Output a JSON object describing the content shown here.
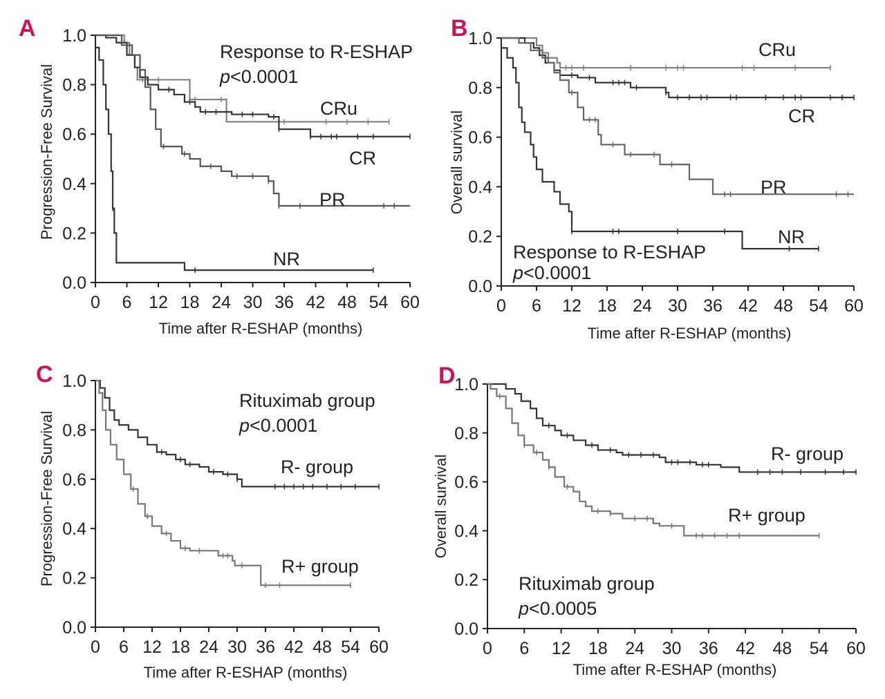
{
  "chart_data": [
    {
      "type": "line",
      "panel_label": "A",
      "title": "Response to R-ESHAP",
      "pvalue_prefix": "p",
      "pvalue_rest": "<0.0001",
      "xlabel": "Time after R-ESHAP (months)",
      "ylabel": "Progression-Free Survival",
      "xlim": [
        0,
        60
      ],
      "ylim": [
        0,
        1
      ],
      "xticks": [
        "0",
        "6",
        "12",
        "18",
        "24",
        "30",
        "36",
        "42",
        "48",
        "54",
        "60"
      ],
      "yticks": [
        "0.0",
        "0.2",
        "0.4",
        "0.6",
        "0.8",
        "1.0"
      ],
      "series": [
        {
          "name": "CRu",
          "color": "#808080",
          "steps": [
            [
              0,
              1
            ],
            [
              5.5,
              0.97
            ],
            [
              6.5,
              0.92
            ],
            [
              7.5,
              0.87
            ],
            [
              8,
              0.82
            ],
            [
              18,
              0.74
            ],
            [
              25,
              0.65
            ],
            [
              56,
              0.65
            ]
          ],
          "censored": [
            9,
            12,
            19,
            24,
            36,
            44,
            48,
            52,
            56
          ]
        },
        {
          "name": "CR",
          "color": "#333333",
          "steps": [
            [
              0,
              1
            ],
            [
              2,
              0.99
            ],
            [
              4,
              0.97
            ],
            [
              6,
              0.92
            ],
            [
              7.5,
              0.87
            ],
            [
              8.5,
              0.83
            ],
            [
              10,
              0.8
            ],
            [
              12,
              0.78
            ],
            [
              15,
              0.76
            ],
            [
              17,
              0.73
            ],
            [
              19,
              0.71
            ],
            [
              20,
              0.69
            ],
            [
              23,
              0.69
            ],
            [
              26,
              0.68
            ],
            [
              30,
              0.68
            ],
            [
              33,
              0.67
            ],
            [
              35,
              0.62
            ],
            [
              36,
              0.62
            ],
            [
              41,
              0.59
            ],
            [
              60,
              0.59
            ]
          ],
          "censored": [
            14,
            18,
            21,
            23,
            28,
            30,
            34,
            35,
            41,
            43,
            45,
            46,
            50,
            53,
            60
          ]
        },
        {
          "name": "PR",
          "color": "#555555",
          "steps": [
            [
              0,
              1
            ],
            [
              5,
              0.96
            ],
            [
              7,
              0.92
            ],
            [
              8.5,
              0.86
            ],
            [
              9.5,
              0.79
            ],
            [
              10.5,
              0.7
            ],
            [
              11.5,
              0.62
            ],
            [
              12.5,
              0.55
            ],
            [
              16.5,
              0.52
            ],
            [
              18,
              0.5
            ],
            [
              20,
              0.47
            ],
            [
              24,
              0.45
            ],
            [
              26,
              0.43
            ],
            [
              33,
              0.41
            ],
            [
              34,
              0.36
            ],
            [
              35,
              0.31
            ],
            [
              60,
              0.31
            ]
          ],
          "censored": [
            13,
            17,
            22,
            27,
            30,
            33,
            35,
            39,
            55,
            57
          ]
        },
        {
          "name": "NR",
          "color": "#333333",
          "steps": [
            [
              0,
              0.95
            ],
            [
              0.7,
              0.9
            ],
            [
              1.5,
              0.8
            ],
            [
              2,
              0.7
            ],
            [
              2.5,
              0.6
            ],
            [
              3,
              0.45
            ],
            [
              3.3,
              0.3
            ],
            [
              3.6,
              0.2
            ],
            [
              4,
              0.08
            ],
            [
              17,
              0.05
            ],
            [
              53,
              0.05
            ]
          ],
          "censored": [
            3.3,
            19,
            53
          ]
        }
      ]
    },
    {
      "type": "line",
      "panel_label": "B",
      "title": "Response to R-ESHAP",
      "pvalue_prefix": "p",
      "pvalue_rest": "<0.0001",
      "xlabel": "Time after R-ESHAP (months)",
      "ylabel": "Overall survival",
      "xlim": [
        0,
        60
      ],
      "ylim": [
        0,
        1
      ],
      "xticks": [
        "0",
        "6",
        "12",
        "18",
        "24",
        "30",
        "36",
        "42",
        "48",
        "54",
        "60"
      ],
      "yticks": [
        "0.0",
        "0.2",
        "0.4",
        "0.6",
        "0.8",
        "1.0"
      ],
      "series": [
        {
          "name": "CRu",
          "color": "#808080",
          "steps": [
            [
              0,
              1
            ],
            [
              6,
              0.97
            ],
            [
              7,
              0.94
            ],
            [
              8,
              0.92
            ],
            [
              9.5,
              0.9
            ],
            [
              10,
              0.88
            ],
            [
              56,
              0.88
            ]
          ],
          "censored": [
            11,
            12,
            14,
            22,
            28,
            30,
            31,
            41,
            43,
            50,
            56
          ]
        },
        {
          "name": "CR",
          "color": "#333333",
          "steps": [
            [
              0,
              1
            ],
            [
              4,
              0.98
            ],
            [
              5.5,
              0.96
            ],
            [
              6.5,
              0.93
            ],
            [
              7.5,
              0.9
            ],
            [
              9,
              0.87
            ],
            [
              10,
              0.85
            ],
            [
              13,
              0.84
            ],
            [
              16,
              0.82
            ],
            [
              22,
              0.8
            ],
            [
              28,
              0.78
            ],
            [
              28.5,
              0.76
            ],
            [
              60,
              0.76
            ]
          ],
          "censored": [
            12,
            15,
            19,
            20,
            21,
            23,
            28,
            30,
            32,
            34,
            35,
            39,
            40,
            45,
            48,
            50,
            51,
            56,
            58,
            60
          ]
        },
        {
          "name": "PR",
          "color": "#666666",
          "steps": [
            [
              0,
              1
            ],
            [
              3,
              0.98
            ],
            [
              5,
              0.95
            ],
            [
              7,
              0.92
            ],
            [
              8,
              0.9
            ],
            [
              9,
              0.86
            ],
            [
              10,
              0.83
            ],
            [
              11.5,
              0.78
            ],
            [
              13,
              0.72
            ],
            [
              14,
              0.67
            ],
            [
              16.5,
              0.61
            ],
            [
              17,
              0.57
            ],
            [
              21,
              0.53
            ],
            [
              27,
              0.49
            ],
            [
              32,
              0.43
            ],
            [
              36,
              0.37
            ],
            [
              60,
              0.37
            ]
          ],
          "censored": [
            12,
            15,
            16,
            19,
            22,
            26,
            29,
            38,
            39,
            57,
            59
          ]
        },
        {
          "name": "NR",
          "color": "#333333",
          "steps": [
            [
              0,
              0.96
            ],
            [
              1,
              0.92
            ],
            [
              2,
              0.88
            ],
            [
              2.5,
              0.82
            ],
            [
              3,
              0.72
            ],
            [
              3.5,
              0.66
            ],
            [
              4,
              0.62
            ],
            [
              5,
              0.57
            ],
            [
              5.5,
              0.52
            ],
            [
              6,
              0.47
            ],
            [
              7,
              0.42
            ],
            [
              9,
              0.38
            ],
            [
              10,
              0.33
            ],
            [
              11.5,
              0.3
            ],
            [
              12,
              0.22
            ],
            [
              40,
              0.22
            ],
            [
              41,
              0.15
            ],
            [
              54,
              0.15
            ]
          ],
          "censored": [
            12,
            19,
            20,
            30,
            38,
            49,
            54
          ]
        }
      ]
    },
    {
      "type": "line",
      "panel_label": "C",
      "title": "Rituximab group",
      "pvalue_prefix": "p",
      "pvalue_rest": "<0.0001",
      "xlabel": "Time after R-ESHAP (months)",
      "ylabel": "Progression-Free Survival",
      "xlim": [
        0,
        60
      ],
      "ylim": [
        0,
        1
      ],
      "xticks": [
        "0",
        "6",
        "12",
        "18",
        "24",
        "30",
        "36",
        "42",
        "48",
        "54",
        "60"
      ],
      "yticks": [
        "0.0",
        "0.2",
        "0.4",
        "0.6",
        "0.8",
        "1.0"
      ],
      "series": [
        {
          "name": "R- group",
          "color": "#333333",
          "steps": [
            [
              0,
              1
            ],
            [
              1,
              0.97
            ],
            [
              2,
              0.93
            ],
            [
              3,
              0.88
            ],
            [
              4,
              0.84
            ],
            [
              5,
              0.82
            ],
            [
              7,
              0.8
            ],
            [
              9,
              0.77
            ],
            [
              11,
              0.74
            ],
            [
              13,
              0.71
            ],
            [
              15,
              0.7
            ],
            [
              17,
              0.68
            ],
            [
              19,
              0.66
            ],
            [
              22,
              0.65
            ],
            [
              24,
              0.63
            ],
            [
              27,
              0.62
            ],
            [
              30,
              0.6
            ],
            [
              31,
              0.57
            ],
            [
              60,
              0.57
            ]
          ],
          "censored": [
            14,
            18,
            20,
            25,
            28,
            30,
            38,
            40,
            42,
            44,
            46,
            49,
            52,
            55,
            60
          ]
        },
        {
          "name": "R+ group",
          "color": "#777777",
          "steps": [
            [
              0,
              1
            ],
            [
              0.8,
              0.95
            ],
            [
              1.5,
              0.88
            ],
            [
              2.2,
              0.8
            ],
            [
              3.2,
              0.74
            ],
            [
              4.5,
              0.68
            ],
            [
              6,
              0.62
            ],
            [
              7.5,
              0.56
            ],
            [
              9,
              0.5
            ],
            [
              10.5,
              0.45
            ],
            [
              12,
              0.41
            ],
            [
              14,
              0.38
            ],
            [
              16,
              0.35
            ],
            [
              18,
              0.32
            ],
            [
              20,
              0.31
            ],
            [
              26,
              0.29
            ],
            [
              29,
              0.27
            ],
            [
              29.5,
              0.25
            ],
            [
              35,
              0.17
            ],
            [
              54,
              0.17
            ]
          ],
          "censored": [
            8,
            11,
            15,
            19,
            22,
            27,
            28,
            31,
            36,
            39,
            54
          ]
        }
      ]
    },
    {
      "type": "line",
      "panel_label": "D",
      "title": "Rituximab group",
      "pvalue_prefix": "p",
      "pvalue_rest": "<0.0005",
      "xlabel": "Time after R-ESHAP (months)",
      "ylabel": "Overall survival",
      "xlim": [
        0,
        60
      ],
      "ylim": [
        0,
        1
      ],
      "xticks": [
        "0",
        "6",
        "12",
        "18",
        "24",
        "30",
        "36",
        "42",
        "48",
        "54",
        "60"
      ],
      "yticks": [
        "0.0",
        "0.2",
        "0.4",
        "0.6",
        "0.8",
        "1.0"
      ],
      "series": [
        {
          "name": "R- group",
          "color": "#333333",
          "steps": [
            [
              0,
              1
            ],
            [
              3,
              0.98
            ],
            [
              4.5,
              0.96
            ],
            [
              5.5,
              0.93
            ],
            [
              7,
              0.9
            ],
            [
              8,
              0.86
            ],
            [
              9,
              0.83
            ],
            [
              11,
              0.81
            ],
            [
              12,
              0.79
            ],
            [
              14,
              0.77
            ],
            [
              16,
              0.75
            ],
            [
              18,
              0.73
            ],
            [
              21,
              0.72
            ],
            [
              22,
              0.71
            ],
            [
              28,
              0.7
            ],
            [
              29,
              0.68
            ],
            [
              34,
              0.67
            ],
            [
              38,
              0.66
            ],
            [
              41,
              0.64
            ],
            [
              60,
              0.64
            ]
          ],
          "censored": [
            10,
            13,
            17,
            20,
            23,
            25,
            27,
            30,
            31,
            33,
            35,
            36,
            44,
            46,
            48,
            51,
            55,
            58,
            60
          ]
        },
        {
          "name": "R+ group",
          "color": "#777777",
          "steps": [
            [
              0,
              1
            ],
            [
              0.5,
              0.98
            ],
            [
              1.5,
              0.95
            ],
            [
              3,
              0.9
            ],
            [
              4,
              0.84
            ],
            [
              5,
              0.79
            ],
            [
              6,
              0.75
            ],
            [
              7.5,
              0.72
            ],
            [
              9,
              0.69
            ],
            [
              10,
              0.66
            ],
            [
              11,
              0.62
            ],
            [
              12.5,
              0.58
            ],
            [
              14,
              0.56
            ],
            [
              15,
              0.52
            ],
            [
              16,
              0.5
            ],
            [
              17,
              0.48
            ],
            [
              20,
              0.47
            ],
            [
              22,
              0.45
            ],
            [
              27,
              0.43
            ],
            [
              28,
              0.42
            ],
            [
              32,
              0.38
            ],
            [
              54,
              0.38
            ]
          ],
          "censored": [
            2,
            6,
            8,
            10,
            13,
            18,
            20,
            24,
            26,
            30,
            34,
            35,
            37,
            39,
            41,
            54
          ]
        }
      ]
    }
  ]
}
